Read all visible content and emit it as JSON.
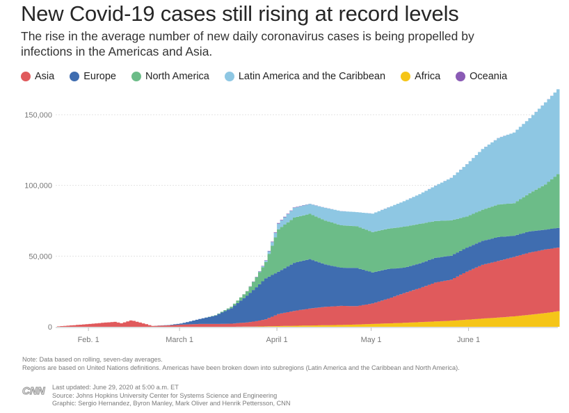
{
  "header": {
    "title": "New Covid-19 cases still rising at record levels",
    "subtitle": "The rise in the average number of new daily coronavirus cases is being propelled by infections in the Americas and Asia."
  },
  "legend": [
    {
      "name": "Asia",
      "color": "#e05a5c"
    },
    {
      "name": "Europe",
      "color": "#3f6db0"
    },
    {
      "name": "North America",
      "color": "#6cbc88"
    },
    {
      "name": "Latin America and the Caribbean",
      "color": "#8ec7e3"
    },
    {
      "name": "Africa",
      "color": "#f5c518"
    },
    {
      "name": "Oceania",
      "color": "#8a5bb5"
    }
  ],
  "chart_data": {
    "type": "area",
    "stacked": true,
    "title": "New Covid-19 cases still rising at record levels",
    "xlabel": "",
    "ylabel": "",
    "ylim": [
      0,
      160000
    ],
    "yticks": [
      0,
      50000,
      100000,
      150000
    ],
    "ytick_labels": [
      "0",
      "50,000",
      "100,000",
      "150,000"
    ],
    "xticks": [
      {
        "day": 10,
        "label": "Feb. 1"
      },
      {
        "day": 39,
        "label": "March 1"
      },
      {
        "day": 70,
        "label": "April 1"
      },
      {
        "day": 100,
        "label": "May 1"
      },
      {
        "day": 131,
        "label": "June 1"
      }
    ],
    "x_day_range": [
      0,
      159
    ],
    "key_days": [
      0,
      10,
      15,
      18,
      20,
      23,
      24,
      30,
      35,
      39,
      45,
      50,
      55,
      60,
      63,
      66,
      70,
      75,
      80,
      85,
      90,
      95,
      100,
      105,
      110,
      115,
      120,
      125,
      130,
      135,
      140,
      145,
      150,
      155,
      159
    ],
    "series": [
      {
        "name": "Africa",
        "values": [
          0,
          0,
          0,
          0,
          0,
          0,
          0,
          0,
          0,
          0,
          0,
          0,
          0,
          100,
          200,
          300,
          500,
          700,
          900,
          1100,
          1300,
          1600,
          2000,
          2400,
          2800,
          3300,
          3800,
          4300,
          5000,
          5800,
          6500,
          7400,
          8500,
          9700,
          11000
        ]
      },
      {
        "name": "Asia",
        "values": [
          300,
          2000,
          3000,
          3500,
          2500,
          4500,
          4200,
          600,
          1000,
          1500,
          2000,
          2000,
          2200,
          3000,
          3800,
          5000,
          8500,
          10500,
          12000,
          13000,
          13500,
          13000,
          14500,
          17500,
          21000,
          24000,
          27500,
          29000,
          34000,
          38000,
          40000,
          42000,
          44000,
          45000,
          45000
        ]
      },
      {
        "name": "Europe",
        "values": [
          0,
          0,
          0,
          0,
          0,
          0,
          0,
          0,
          200,
          800,
          3500,
          6000,
          11000,
          19000,
          24000,
          29000,
          30000,
          34000,
          35000,
          30000,
          27000,
          27000,
          22000,
          21000,
          18000,
          17500,
          17500,
          17000,
          17000,
          17000,
          17000,
          15000,
          15000,
          14000,
          14000
        ]
      },
      {
        "name": "North America",
        "values": [
          0,
          0,
          0,
          0,
          0,
          0,
          0,
          0,
          0,
          0,
          0,
          200,
          1000,
          3000,
          7000,
          11500,
          30000,
          32000,
          32000,
          31000,
          30000,
          29500,
          28500,
          28500,
          29000,
          28000,
          26000,
          25000,
          22000,
          22000,
          23000,
          23000,
          27000,
          32000,
          38000
        ]
      },
      {
        "name": "Latin America and the Caribbean",
        "values": [
          0,
          0,
          0,
          0,
          0,
          0,
          0,
          0,
          0,
          0,
          0,
          0,
          0,
          0,
          200,
          1000,
          4000,
          7000,
          7000,
          9000,
          10000,
          10000,
          13000,
          15000,
          18000,
          21000,
          25000,
          30000,
          37000,
          43000,
          47000,
          50000,
          53000,
          58000,
          60000
        ]
      },
      {
        "name": "Oceania",
        "values": [
          0,
          0,
          0,
          0,
          0,
          0,
          0,
          0,
          0,
          0,
          0,
          0,
          0,
          100,
          200,
          300,
          400,
          300,
          100,
          50,
          20,
          20,
          20,
          20,
          20,
          20,
          20,
          20,
          20,
          20,
          20,
          20,
          20,
          20,
          20
        ]
      }
    ]
  },
  "footer": {
    "note1": "Note: Data based on rolling, seven-day averages.",
    "note2": "Regions are based on United Nations definitions. Americas have been broken down into subregions (Latin America and the Caribbean and North America).",
    "logo_text": "CNN",
    "updated": "Last updated: June 29, 2020 at 5:00 a.m. ET",
    "source": "Source: Johns Hopkins University Center for Systems Science and Engineering",
    "graphic": "Graphic: Sergio Hernandez, Byron Manley, Mark Oliver and Henrik Pettersson, CNN"
  }
}
